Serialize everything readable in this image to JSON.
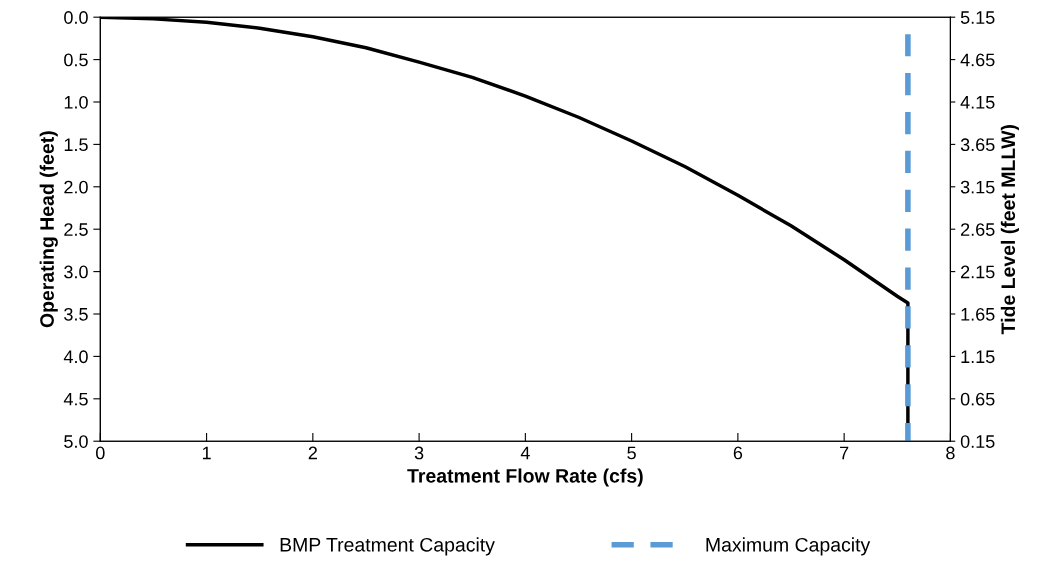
{
  "chart_data": {
    "type": "line",
    "xlabel": "Treatment Flow Rate (cfs)",
    "ylabel": "Operating Head (feet)",
    "y2label": "Tide Level (feet MLLW)",
    "xlim": [
      0,
      8
    ],
    "xticks": [
      0,
      1,
      2,
      3,
      4,
      5,
      6,
      7,
      8
    ],
    "ylim": [
      5.0,
      0.0
    ],
    "yticks": [
      {
        "value": 0,
        "label": "0.0"
      },
      0.5,
      {
        "value": 1,
        "label": "1.0"
      },
      1.5,
      {
        "value": 2,
        "label": "2.0"
      },
      2.5,
      {
        "value": 3,
        "label": "3.0"
      },
      3.5,
      {
        "value": 4,
        "label": "4.0"
      },
      4.5,
      {
        "value": 5,
        "label": "5.0"
      }
    ],
    "y2lim": [
      0.15,
      5.15
    ],
    "y2ticks": [
      0.15,
      0.65,
      1.15,
      1.65,
      2.15,
      2.65,
      3.15,
      3.65,
      4.15,
      4.65,
      5.15
    ],
    "grid": false,
    "legend": "bottom",
    "series": [
      {
        "name": "BMP Treatment Capacity",
        "color": "#000000",
        "line_style": "solid",
        "x": [
          0,
          0.5,
          1,
          1.5,
          2,
          2.5,
          3,
          3.5,
          4,
          4.5,
          5,
          5.5,
          6,
          6.5,
          7,
          7.5,
          7.6,
          7.6
        ],
        "values": [
          0,
          0.02,
          0.06,
          0.13,
          0.23,
          0.36,
          0.53,
          0.71,
          0.93,
          1.18,
          1.46,
          1.76,
          2.1,
          2.46,
          2.86,
          3.29,
          3.37,
          5.0
        ]
      },
      {
        "name": "Maximum Capacity",
        "color": "#5b9bd5",
        "line_style": "dashed",
        "x": [
          7.6,
          7.6
        ],
        "values": [
          0.2,
          5.0
        ]
      }
    ]
  }
}
